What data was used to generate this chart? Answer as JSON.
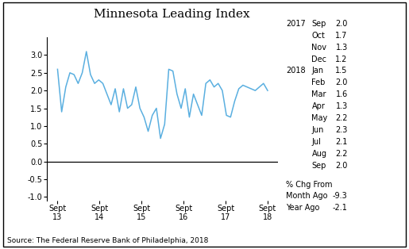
{
  "title": "Minnesota Leading Index",
  "source": "Source: The Federal Reserve Bank of Philadelphia, 2018",
  "line_color": "#5aafe0",
  "background_color": "#ffffff",
  "x_tick_labels": [
    "Sept\n13",
    "Sept\n14",
    "Sept\n15",
    "Sept\n16",
    "Sept\n17",
    "Sept\n18"
  ],
  "ylim": [
    -1.1,
    3.5
  ],
  "yticks": [
    -1.0,
    -0.5,
    0.0,
    0.5,
    1.0,
    1.5,
    2.0,
    2.5,
    3.0
  ],
  "ytick_labels": [
    "-1.0",
    "-0.5",
    "0.0",
    "0.5",
    "1.0",
    "1.5",
    "2.0",
    "2.5",
    "3.0"
  ],
  "y_values": [
    2.6,
    1.4,
    2.1,
    2.5,
    2.45,
    2.2,
    2.5,
    3.1,
    2.45,
    2.2,
    2.3,
    2.2,
    1.9,
    1.6,
    2.05,
    1.4,
    2.05,
    1.5,
    1.6,
    2.1,
    1.5,
    1.25,
    0.85,
    1.3,
    1.5,
    0.65,
    1.05,
    2.6,
    2.55,
    1.9,
    1.5,
    2.05,
    1.25,
    1.9,
    1.6,
    1.3,
    2.2,
    2.3,
    2.1,
    2.2,
    2.0,
    1.3,
    1.25,
    1.7,
    2.05,
    2.15,
    2.1,
    2.05,
    2.0,
    2.1,
    2.2,
    2.0
  ],
  "table_month_labels": [
    "Sep",
    "Oct",
    "Nov",
    "Dec",
    "Jan",
    "Feb",
    "Mar",
    "Apr",
    "May",
    "Jun",
    "Jul",
    "Aug",
    "Sep"
  ],
  "table_values": [
    "2.0",
    "1.7",
    "1.3",
    "1.2",
    "1.5",
    "2.0",
    "1.6",
    "1.3",
    "2.2",
    "2.3",
    "2.1",
    "2.2",
    "2.0"
  ],
  "pct_chg_label": "% Chg From",
  "month_ago_label": "Month Ago",
  "year_ago_label": "Year Ago",
  "month_ago_value": "-9.3",
  "year_ago_value": "-2.1",
  "fontsize_table": 7.0,
  "fontsize_title": 11,
  "fontsize_axis": 7.0,
  "fontsize_source": 6.5
}
